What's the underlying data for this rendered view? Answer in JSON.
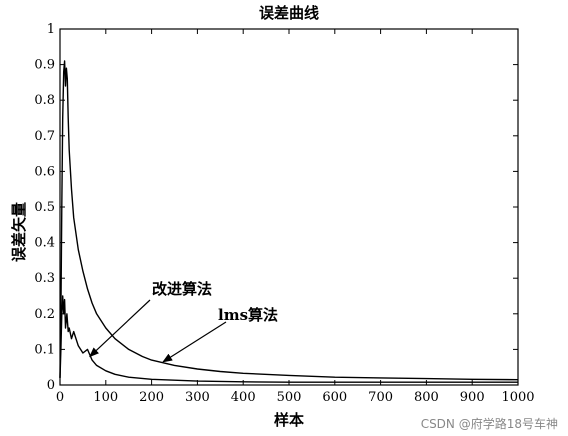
{
  "chart_data": {
    "type": "line",
    "title": "误差曲线",
    "xlabel": "样本",
    "ylabel": "误差矢量",
    "xlim": [
      0,
      1000
    ],
    "ylim": [
      0,
      1
    ],
    "x_ticks": [
      "0",
      "100",
      "200",
      "300",
      "400",
      "500",
      "600",
      "700",
      "800",
      "900",
      "1000"
    ],
    "y_ticks": [
      "0",
      "0.1",
      "0.2",
      "0.3",
      "0.4",
      "0.5",
      "0.6",
      "0.7",
      "0.8",
      "0.9",
      "1"
    ],
    "grid": false,
    "series": [
      {
        "name": "lms算法",
        "x": [
          0,
          2,
          4,
          6,
          8,
          10,
          12,
          14,
          16,
          18,
          20,
          25,
          30,
          40,
          50,
          60,
          70,
          80,
          100,
          120,
          150,
          180,
          200,
          250,
          300,
          350,
          400,
          500,
          600,
          700,
          800,
          900,
          1000
        ],
        "y": [
          0.02,
          0.2,
          0.5,
          0.75,
          0.88,
          0.91,
          0.84,
          0.89,
          0.86,
          0.75,
          0.66,
          0.55,
          0.47,
          0.38,
          0.32,
          0.27,
          0.23,
          0.2,
          0.16,
          0.13,
          0.1,
          0.08,
          0.07,
          0.055,
          0.045,
          0.038,
          0.033,
          0.027,
          0.022,
          0.02,
          0.018,
          0.016,
          0.015
        ]
      },
      {
        "name": "改进算法",
        "x": [
          0,
          2,
          4,
          6,
          8,
          10,
          12,
          15,
          18,
          20,
          25,
          30,
          40,
          50,
          60,
          70,
          80,
          100,
          120,
          150,
          200,
          300,
          400,
          500,
          600,
          700,
          800,
          900,
          1000
        ],
        "y": [
          0.02,
          0.1,
          0.2,
          0.25,
          0.2,
          0.24,
          0.16,
          0.2,
          0.15,
          0.16,
          0.13,
          0.15,
          0.11,
          0.09,
          0.1,
          0.07,
          0.055,
          0.04,
          0.03,
          0.022,
          0.016,
          0.011,
          0.009,
          0.008,
          0.008,
          0.008,
          0.008,
          0.008,
          0.008
        ]
      }
    ],
    "annotations": [
      {
        "text": "改进算法",
        "target_series": "改进算法",
        "target": [
          65,
          0.08
        ]
      },
      {
        "text": "lms算法",
        "target_series": "lms算法",
        "target": [
          225,
          0.065
        ]
      }
    ]
  },
  "watermark": "CSDN @府学路18号车神"
}
